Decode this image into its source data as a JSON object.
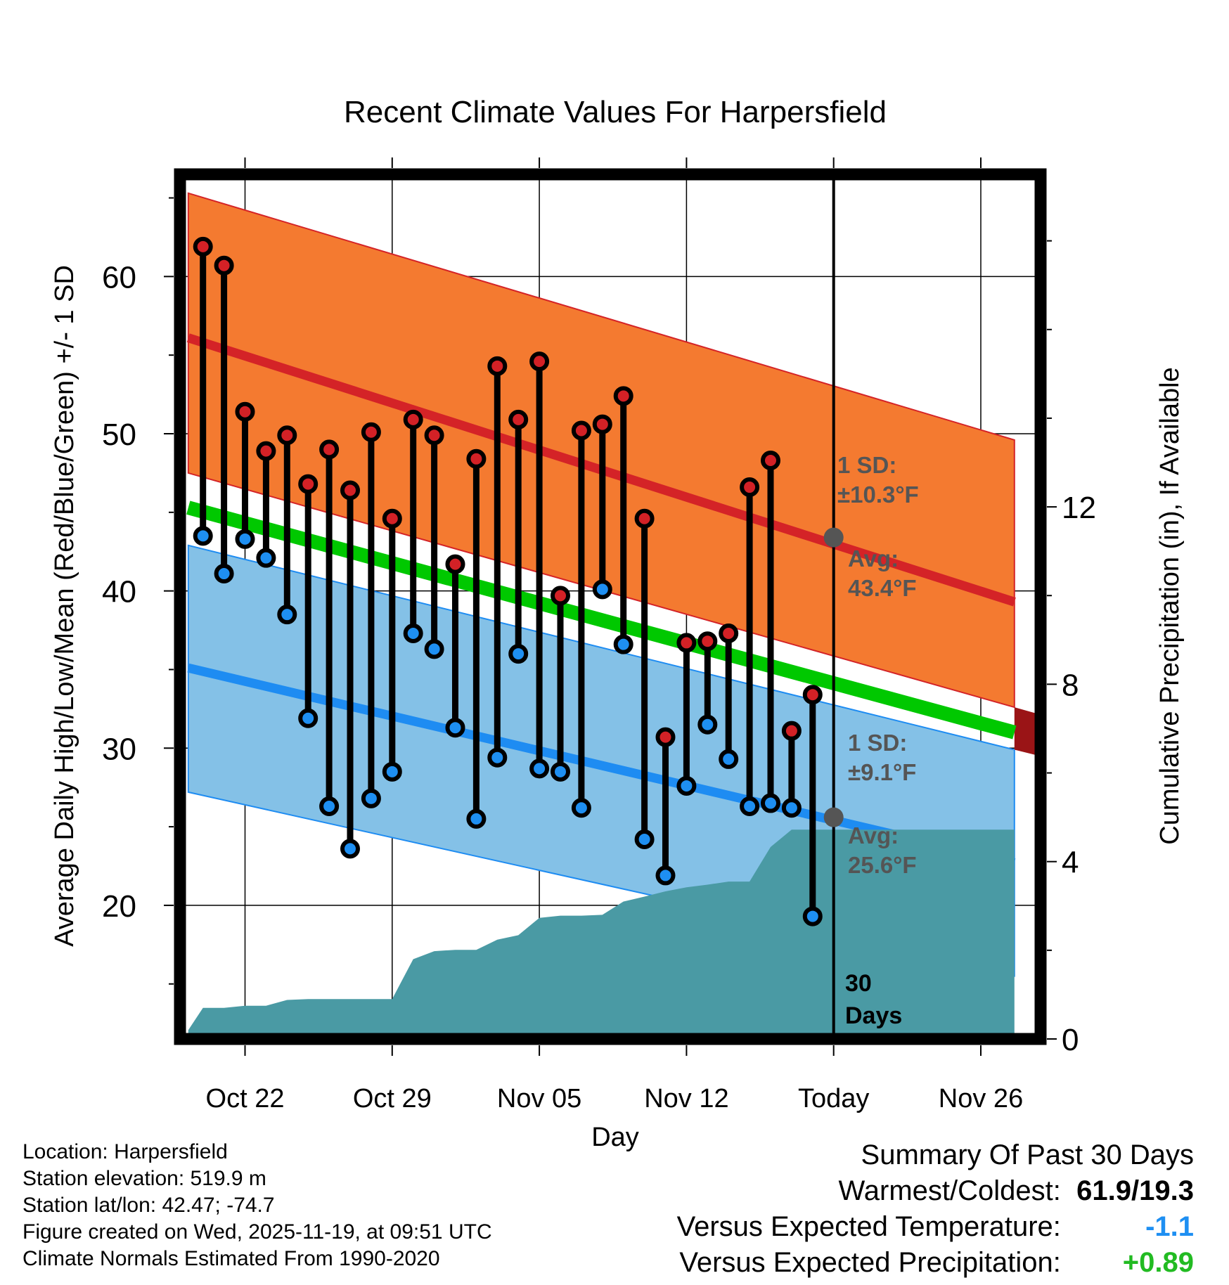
{
  "chart_data": {
    "type": "line",
    "title": "Recent Climate Values For Harpersfield",
    "xlabel": "Day",
    "ylabel_left": "Average Daily High/Low/Mean (Red/Blue/Green) +/- 1 SD",
    "ylabel_right": "Cumulative Precipitation (in), If Available",
    "ylim": [
      11.5,
      66.5
    ],
    "ylim_right": [
      0,
      19.5
    ],
    "xlim": [
      -3.8,
      37.8
    ],
    "x_day_index": "day 0 = Oct 22, day 28 = Today (Nov 19)",
    "x_ticks": [
      {
        "day": 0,
        "label": "Oct 22"
      },
      {
        "day": 7,
        "label": "Oct 29"
      },
      {
        "day": 14,
        "label": "Nov 05"
      },
      {
        "day": 21,
        "label": "Nov 12"
      },
      {
        "day": 28,
        "label": "Today"
      },
      {
        "day": 35,
        "label": "Nov 26"
      }
    ],
    "y_ticks": [
      20,
      30,
      40,
      50,
      60
    ],
    "y_ticks_right": [
      0,
      4,
      8,
      12
    ],
    "normals": {
      "days": [
        -2.7,
        36.6
      ],
      "high_avg": [
        56.1,
        39.3
      ],
      "high_upper": [
        65.3,
        49.6
      ],
      "high_lower": [
        47.5,
        32.6
      ],
      "low_avg": [
        35.1,
        22.7
      ],
      "low_upper": [
        42.9,
        29.9
      ],
      "low_lower": [
        27.2,
        15.5
      ],
      "mean_avg": [
        45.3,
        31.0
      ]
    },
    "observations": {
      "days": [
        -2,
        -1,
        0,
        1,
        2,
        3,
        4,
        5,
        6,
        7,
        8,
        9,
        10,
        11,
        12,
        13,
        14,
        15,
        16,
        17,
        18,
        19,
        20,
        21,
        22,
        23,
        24,
        25,
        26,
        27
      ],
      "high": [
        61.9,
        60.7,
        51.4,
        48.9,
        49.9,
        46.8,
        49.0,
        46.4,
        50.1,
        44.6,
        50.9,
        49.9,
        41.7,
        48.4,
        54.3,
        50.9,
        54.6,
        39.7,
        50.2,
        50.6,
        52.4,
        44.6,
        30.7,
        36.7,
        36.8,
        37.3,
        46.6,
        48.3,
        31.1,
        33.4
      ],
      "low": [
        43.5,
        41.1,
        43.3,
        42.1,
        38.5,
        31.9,
        26.3,
        23.6,
        26.8,
        28.5,
        37.3,
        36.3,
        31.3,
        25.5,
        29.4,
        36.0,
        28.7,
        28.5,
        26.2,
        40.1,
        36.6,
        24.2,
        21.9,
        27.6,
        31.5,
        29.3,
        26.3,
        26.5,
        26.2,
        19.3
      ]
    },
    "precip_cumulative": {
      "days": [
        -2.7,
        -2,
        -1,
        0,
        1,
        2,
        3,
        4,
        5,
        6,
        7,
        8,
        9,
        10,
        11,
        12,
        13,
        14,
        15,
        16,
        17,
        18,
        19,
        20,
        21,
        22,
        23,
        24,
        25,
        26,
        27,
        36.6
      ],
      "values": [
        0.2,
        0.7,
        0.7,
        0.75,
        0.75,
        0.88,
        0.9,
        0.9,
        0.9,
        0.9,
        0.9,
        1.8,
        1.98,
        2.01,
        2.01,
        2.24,
        2.34,
        2.73,
        2.78,
        2.78,
        2.8,
        3.1,
        3.21,
        3.33,
        3.42,
        3.48,
        3.55,
        3.55,
        4.33,
        4.72,
        4.72,
        4.72
      ]
    },
    "annotations": {
      "high_sd_label": "1 SD:",
      "high_sd_value": "±10.3°F",
      "high_avg_label": "Avg:",
      "high_avg_value": "43.4°F",
      "high_avg_today": 43.4,
      "low_sd_label": "1 SD:",
      "low_sd_value": "±9.1°F",
      "low_avg_label": "Avg:",
      "low_avg_value": "25.6°F",
      "low_avg_today": 25.6,
      "period_label_1": "30",
      "period_label_2": "Days"
    },
    "colors": {
      "high_band": "#f47a30",
      "high_line": "#d42327",
      "low_band": "#84c1e7",
      "low_line": "#1e8cf2",
      "mean_line": "#00c800",
      "precip": "#4a9aa4",
      "dark_red": "#9a1416",
      "annotation": "#555555",
      "high_marker": "#d32126",
      "low_marker": "#1e8ff2"
    }
  },
  "station": {
    "location": "Location: Harpersfield",
    "elevation": "Station elevation: 519.9 m",
    "latlon": "Station lat/lon: 42.47; -74.7",
    "created": "Figure created on Wed, 2025-11-19, at 09:51 UTC",
    "normals": "Climate Normals Estimated From 1990-2020"
  },
  "summary": {
    "title": "Summary Of Past 30 Days",
    "warm_cold_label": "Warmest/Coldest:",
    "warm_cold_value": "61.9/19.3",
    "temp_label": "Versus Expected Temperature:",
    "temp_value": "-1.1",
    "temp_color": "#1e8ff2",
    "precip_label": "Versus Expected Precipitation:",
    "precip_value": "+0.89",
    "precip_color": "#22bb22"
  }
}
